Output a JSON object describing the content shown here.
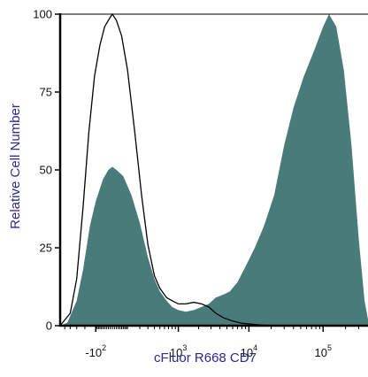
{
  "chart_data": {
    "type": "area",
    "xlabel": "cFluor R668 CD7",
    "ylabel": "Relative Cell Number",
    "x_scale": "biexponential",
    "xlim": [
      -600,
      400000
    ],
    "ylim": [
      0,
      100
    ],
    "y_ticks": [
      {
        "value": 0,
        "label": "0"
      },
      {
        "value": 25,
        "label": "25"
      },
      {
        "value": 50,
        "label": "50"
      },
      {
        "value": 75,
        "label": "75"
      },
      {
        "value": 100,
        "label": "100"
      }
    ],
    "x_ticks": [
      {
        "value": -100,
        "base": "-10",
        "exp": "2"
      },
      {
        "value": 1000,
        "base": "10",
        "exp": "3"
      },
      {
        "value": 10000,
        "base": "10",
        "exp": "4"
      },
      {
        "value": 100000,
        "base": "10",
        "exp": "5"
      }
    ],
    "series": [
      {
        "kind": "filled",
        "color": "#4a7b7b",
        "points": [
          [
            -600,
            0
          ],
          [
            -450,
            1
          ],
          [
            -300,
            8
          ],
          [
            -220,
            18
          ],
          [
            -150,
            32
          ],
          [
            -100,
            40
          ],
          [
            -50,
            47
          ],
          [
            -20,
            50
          ],
          [
            0,
            51
          ],
          [
            20,
            50
          ],
          [
            60,
            48
          ],
          [
            120,
            42
          ],
          [
            200,
            33
          ],
          [
            300,
            22
          ],
          [
            400,
            15
          ],
          [
            500,
            11
          ],
          [
            650,
            8
          ],
          [
            800,
            6
          ],
          [
            1000,
            5
          ],
          [
            1300,
            4.5
          ],
          [
            1700,
            5
          ],
          [
            2200,
            6
          ],
          [
            2800,
            7
          ],
          [
            3500,
            9
          ],
          [
            4500,
            10
          ],
          [
            5500,
            11
          ],
          [
            7000,
            14
          ],
          [
            9000,
            19
          ],
          [
            12000,
            25
          ],
          [
            16000,
            32
          ],
          [
            22000,
            42
          ],
          [
            30000,
            58
          ],
          [
            40000,
            70
          ],
          [
            55000,
            80
          ],
          [
            75000,
            88
          ],
          [
            100000,
            96
          ],
          [
            120000,
            100
          ],
          [
            150000,
            96
          ],
          [
            190000,
            82
          ],
          [
            240000,
            58
          ],
          [
            300000,
            28
          ],
          [
            360000,
            8
          ],
          [
            400000,
            2
          ]
        ]
      },
      {
        "kind": "outline",
        "color": "#000000",
        "points": [
          [
            -600,
            0
          ],
          [
            -400,
            4
          ],
          [
            -300,
            15
          ],
          [
            -220,
            38
          ],
          [
            -160,
            62
          ],
          [
            -110,
            80
          ],
          [
            -70,
            90
          ],
          [
            -40,
            96
          ],
          [
            -10,
            99
          ],
          [
            0,
            100
          ],
          [
            20,
            98
          ],
          [
            50,
            93
          ],
          [
            90,
            82
          ],
          [
            150,
            62
          ],
          [
            220,
            42
          ],
          [
            300,
            26
          ],
          [
            400,
            16
          ],
          [
            500,
            12
          ],
          [
            650,
            9
          ],
          [
            800,
            8
          ],
          [
            1000,
            7
          ],
          [
            1300,
            7
          ],
          [
            1700,
            7.5
          ],
          [
            2200,
            7
          ],
          [
            2800,
            6
          ],
          [
            3500,
            4
          ],
          [
            4500,
            2.5
          ],
          [
            6000,
            1.5
          ],
          [
            8000,
            0.8
          ],
          [
            12000,
            0.4
          ],
          [
            20000,
            0
          ],
          [
            400000,
            0
          ]
        ]
      }
    ]
  }
}
